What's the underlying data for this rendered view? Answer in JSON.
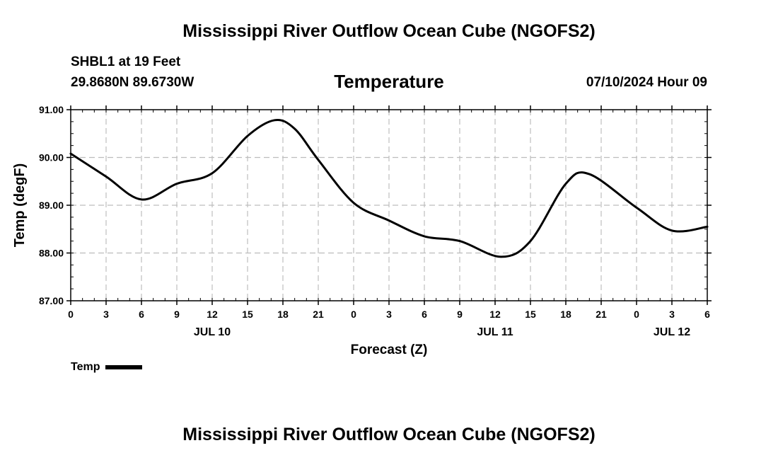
{
  "header": {
    "title": "Mississippi River Outflow Ocean Cube (NGOFS2)",
    "station": "SHBL1 at 19 Feet",
    "coords": "29.8680N  89.6730W",
    "stamp": "07/10/2024 Hour 09"
  },
  "footer": {
    "title": "Mississippi River Outflow Ocean Cube (NGOFS2)"
  },
  "legend": {
    "label": "Temp"
  },
  "chart_data": {
    "type": "line",
    "title": "Temperature",
    "xlabel": "Forecast (Z)",
    "ylabel": "Temp (degF)",
    "ylim": [
      87.0,
      91.0
    ],
    "xlim": [
      0,
      54
    ],
    "grid": true,
    "y_ticks": [
      "87.00",
      "88.00",
      "89.00",
      "90.00",
      "91.00"
    ],
    "x_tick_labels": [
      "0",
      "3",
      "6",
      "9",
      "12",
      "15",
      "18",
      "21",
      "0",
      "3",
      "6",
      "9",
      "12",
      "15",
      "18",
      "21",
      "0",
      "3",
      "6"
    ],
    "date_labels": [
      {
        "label": "JUL 10",
        "hour": 12
      },
      {
        "label": "JUL 11",
        "hour": 36
      },
      {
        "label": "JUL 12",
        "hour": 51
      }
    ],
    "series": [
      {
        "name": "Temp",
        "x": [
          0,
          3,
          6,
          9,
          12,
          15,
          17.3,
          19,
          21,
          24,
          27,
          30,
          33,
          36.5,
          39,
          42,
          44,
          48,
          51,
          54
        ],
        "values": [
          90.08,
          89.6,
          89.12,
          89.45,
          89.67,
          90.45,
          90.78,
          90.6,
          89.95,
          89.05,
          88.68,
          88.35,
          88.25,
          87.92,
          88.25,
          89.45,
          89.65,
          88.95,
          88.47,
          88.55
        ]
      }
    ]
  }
}
